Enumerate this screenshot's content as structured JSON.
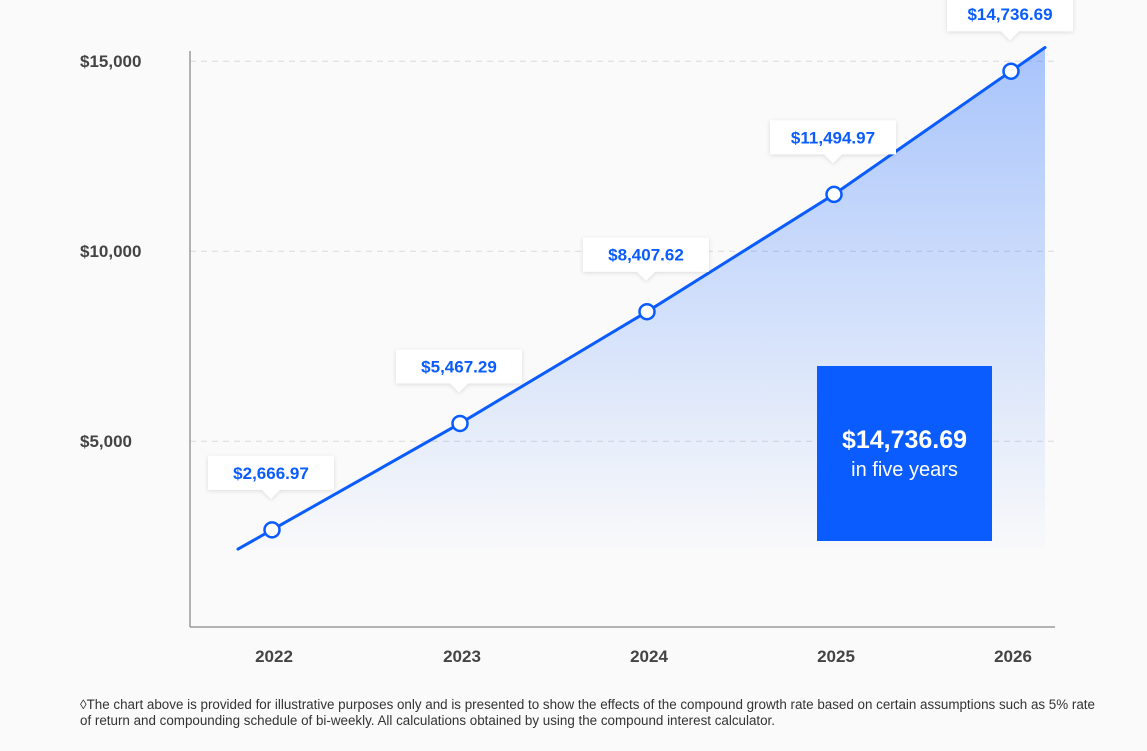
{
  "chart_data": {
    "type": "area",
    "x": [
      "2022",
      "2023",
      "2024",
      "2025",
      "2026"
    ],
    "series": [
      {
        "values": [
          2666.97,
          5467.29,
          8407.62,
          11494.97,
          14736.69
        ]
      }
    ],
    "data_labels": [
      "$2,666.97",
      "$5,467.29",
      "$8,407.62",
      "$11,494.97",
      "$14,736.69"
    ],
    "y_ticks": [
      {
        "value": 5000,
        "label": "$5,000"
      },
      {
        "value": 10000,
        "label": "$10,000"
      },
      {
        "value": 15000,
        "label": "$15,000"
      }
    ],
    "ylim": [
      0,
      15000
    ],
    "grid": "horizontal dashed",
    "colors": {
      "line": "#0a5cff",
      "fill": "#0a5cff",
      "axis": "#999999",
      "grid": "#d9d9d9"
    }
  },
  "summary": {
    "value": "$14,736.69",
    "caption": "in five years"
  },
  "footnote": "◊The chart above is provided for illustrative purposes only and is presented to show the effects of the compound growth rate based on certain assumptions such as 5% rate of return and compounding schedule of bi-weekly. All calculations obtained by using the compound interest calculator."
}
